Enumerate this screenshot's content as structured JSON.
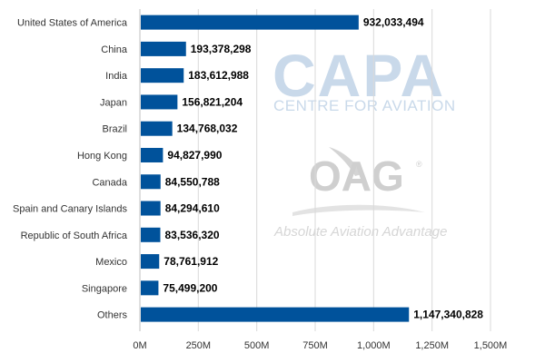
{
  "chart_data": {
    "type": "bar",
    "orientation": "horizontal",
    "title": "",
    "xlabel": "",
    "ylabel": "",
    "categories": [
      "United States of America",
      "China",
      "India",
      "Japan",
      "Brazil",
      "Hong Kong",
      "Canada",
      "Spain and Canary Islands",
      "Republic of South Africa",
      "Mexico",
      "Singapore",
      "Others"
    ],
    "values": [
      932033494,
      193378298,
      183612988,
      156821204,
      134768032,
      94827990,
      84550788,
      84294610,
      83536320,
      78761912,
      75499200,
      1147340828
    ],
    "value_labels": [
      "932,033,494",
      "193,378,298",
      "183,612,988",
      "156,821,204",
      "134,768,032",
      "94,827,990",
      "84,550,788",
      "84,294,610",
      "83,536,320",
      "78,761,912",
      "75,499,200",
      "1,147,340,828"
    ],
    "xlim": [
      0,
      1500000000
    ],
    "xticks": [
      0,
      250000000,
      500000000,
      750000000,
      1000000000,
      1250000000,
      1500000000
    ],
    "xtick_labels": [
      "0M",
      "250M",
      "500M",
      "750M",
      "1,000M",
      "1,250M",
      "1,500M"
    ],
    "grid": "vertical",
    "legend": "none",
    "bar_color": "#00529b"
  },
  "watermarks": {
    "capa_logo": "CAPA",
    "capa_sub": "CENTRE FOR AVIATION",
    "oag_logo": "OAG",
    "oag_tagline": "Absolute Aviation Advantage"
  }
}
